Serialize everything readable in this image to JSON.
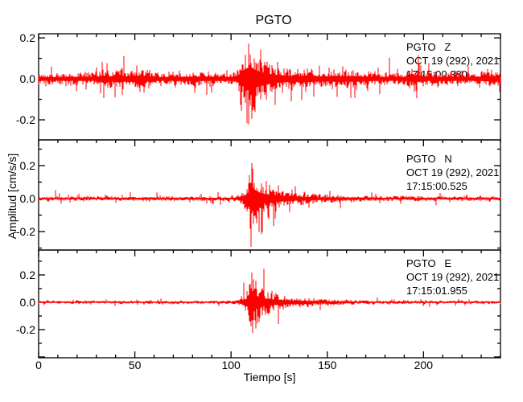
{
  "figure": {
    "title": "PGTO",
    "xlabel": "Tiempo [s]",
    "ylabel": "Amplitud [cm/s/s]",
    "trace_color": "#ff0000",
    "frame_color": "#000000",
    "background": "#ffffff",
    "x_major_values": [
      0,
      50,
      100,
      150,
      200
    ],
    "x_tick_labels": [
      "0",
      "50",
      "100",
      "150",
      "200"
    ],
    "x_minor_step": 10
  },
  "chart_data": [
    {
      "type": "line",
      "station": "PGTO",
      "channel": "Z",
      "label_line1": "PGTO   Z",
      "label_line2": "OCT 19 (292), 2021",
      "label_line3": "17:15:00.380",
      "x_range_s": [
        0,
        240
      ],
      "ylim": [
        -0.298,
        0.22
      ],
      "y_major_ticks": [
        -0.2,
        0.0,
        0.2
      ],
      "y_tick_labels": [
        "-0.2",
        "0.0",
        "0.2"
      ],
      "y_minor_step": 0.1,
      "seed": 20211019,
      "envelope": [
        [
          0,
          0.03
        ],
        [
          15,
          0.032
        ],
        [
          30,
          0.034
        ],
        [
          34,
          0.052
        ],
        [
          38,
          0.042
        ],
        [
          42,
          0.058
        ],
        [
          46,
          0.04
        ],
        [
          50,
          0.056
        ],
        [
          55,
          0.052
        ],
        [
          59,
          0.036
        ],
        [
          65,
          0.03
        ],
        [
          72,
          0.034
        ],
        [
          80,
          0.036
        ],
        [
          88,
          0.034
        ],
        [
          95,
          0.03
        ],
        [
          100,
          0.032
        ],
        [
          103,
          0.045
        ],
        [
          105,
          0.09
        ],
        [
          107,
          0.14
        ],
        [
          109,
          0.19
        ],
        [
          110,
          0.21
        ],
        [
          111,
          0.18
        ],
        [
          113,
          0.14
        ],
        [
          116,
          0.11
        ],
        [
          120,
          0.08
        ],
        [
          125,
          0.06
        ],
        [
          130,
          0.05
        ],
        [
          136,
          0.05
        ],
        [
          140,
          0.055
        ],
        [
          144,
          0.045
        ],
        [
          150,
          0.04
        ],
        [
          154,
          0.05
        ],
        [
          158,
          0.042
        ],
        [
          163,
          0.048
        ],
        [
          168,
          0.04
        ],
        [
          175,
          0.034
        ],
        [
          182,
          0.032
        ],
        [
          190,
          0.03
        ],
        [
          196,
          0.062
        ],
        [
          198,
          0.045
        ],
        [
          204,
          0.032
        ],
        [
          212,
          0.034
        ],
        [
          220,
          0.03
        ],
        [
          228,
          0.034
        ],
        [
          234,
          0.042
        ],
        [
          240,
          0.038
        ]
      ]
    },
    {
      "type": "line",
      "station": "PGTO",
      "channel": "N",
      "label_line1": "PGTO   N",
      "label_line2": "OCT 19 (292), 2021",
      "label_line3": "17:15:00.525",
      "x_range_s": [
        0,
        240
      ],
      "ylim": [
        -0.312,
        0.356
      ],
      "y_major_ticks": [
        -0.2,
        0.0,
        0.2
      ],
      "y_tick_labels": [
        "-0.2",
        "0.0",
        "0.2"
      ],
      "y_minor_step": 0.1,
      "seed": 17150052,
      "envelope": [
        [
          0,
          0.014
        ],
        [
          40,
          0.014
        ],
        [
          80,
          0.015
        ],
        [
          95,
          0.014
        ],
        [
          102,
          0.018
        ],
        [
          105,
          0.035
        ],
        [
          107,
          0.06
        ],
        [
          108.5,
          0.1
        ],
        [
          109.5,
          0.2
        ],
        [
          110,
          0.33
        ],
        [
          110.8,
          0.3
        ],
        [
          111.5,
          0.22
        ],
        [
          113,
          0.16
        ],
        [
          115,
          0.12
        ],
        [
          118,
          0.09
        ],
        [
          122,
          0.07
        ],
        [
          127,
          0.055
        ],
        [
          132,
          0.045
        ],
        [
          138,
          0.035
        ],
        [
          145,
          0.028
        ],
        [
          152,
          0.024
        ],
        [
          160,
          0.02
        ],
        [
          175,
          0.017
        ],
        [
          200,
          0.015
        ],
        [
          220,
          0.014
        ],
        [
          240,
          0.014
        ]
      ]
    },
    {
      "type": "line",
      "station": "PGTO",
      "channel": "E",
      "label_line1": "PGTO   E",
      "label_line2": "OCT 19 (292), 2021",
      "label_line3": "17:15:01.955",
      "x_range_s": [
        0,
        240
      ],
      "ylim": [
        -0.406,
        0.382
      ],
      "y_major_ticks": [
        -0.2,
        0.0,
        0.2
      ],
      "y_tick_labels": [
        "-0.2",
        "0.0",
        "0.2"
      ],
      "y_minor_step": 0.1,
      "seed": 17150195,
      "envelope": [
        [
          0,
          0.012
        ],
        [
          50,
          0.012
        ],
        [
          90,
          0.013
        ],
        [
          100,
          0.014
        ],
        [
          104,
          0.025
        ],
        [
          106,
          0.045
        ],
        [
          108,
          0.08
        ],
        [
          109.5,
          0.18
        ],
        [
          110,
          0.35
        ],
        [
          110.8,
          0.32
        ],
        [
          111.5,
          0.24
        ],
        [
          113,
          0.17
        ],
        [
          115,
          0.12
        ],
        [
          118,
          0.09
        ],
        [
          122,
          0.07
        ],
        [
          128,
          0.05
        ],
        [
          134,
          0.04
        ],
        [
          142,
          0.03
        ],
        [
          150,
          0.024
        ],
        [
          160,
          0.018
        ],
        [
          175,
          0.015
        ],
        [
          200,
          0.013
        ],
        [
          240,
          0.012
        ]
      ]
    }
  ]
}
